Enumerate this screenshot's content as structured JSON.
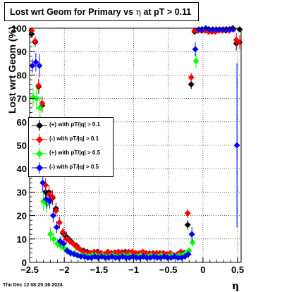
{
  "title": {
    "prefix": "Lost wrt Geom for Primary vs ",
    "symbol": "η",
    "suffix": " at pT > 0.11"
  },
  "timestamp": "Thu Dec 12 08:25:36 2024",
  "chart_data": {
    "type": "scatter",
    "title": "Lost wrt Geom for Primary vs η at pT > 0.11",
    "xlabel": "η",
    "ylabel": "Lost wrt Geom (%)",
    "xlim": [
      -2.5,
      0.55
    ],
    "ylim": [
      0,
      100
    ],
    "x_ticks": [
      -2.5,
      -2,
      -1.5,
      -1,
      -0.5,
      0,
      0.5
    ],
    "x_tick_labels": [
      "−2.5",
      "−2",
      "−1.5",
      "−1",
      "−0.5",
      "0",
      "0.5"
    ],
    "y_ticks": [
      0,
      10,
      20,
      30,
      40,
      50,
      60,
      70,
      80,
      90,
      100
    ],
    "y_tick_labels": [
      "0",
      "10",
      "20",
      "30",
      "40",
      "50",
      "60",
      "70",
      "80",
      "90",
      "100"
    ],
    "grid": true,
    "legend_position": "middle-left",
    "series": [
      {
        "name": "(+) with pT/|q| > 0.1",
        "color": "#000000",
        "x": [
          -2.47,
          -2.42,
          -2.37,
          -2.32,
          -2.27,
          -2.22,
          -2.17,
          -2.12,
          -2.07,
          -2.02,
          -1.97,
          -1.92,
          -1.87,
          -1.82,
          -1.77,
          -1.72,
          -1.67,
          -1.62,
          -1.57,
          -1.52,
          -1.47,
          -1.42,
          -1.37,
          -1.32,
          -1.27,
          -1.22,
          -1.17,
          -1.12,
          -1.07,
          -1.02,
          -0.97,
          -0.92,
          -0.87,
          -0.82,
          -0.77,
          -0.72,
          -0.67,
          -0.62,
          -0.57,
          -0.52,
          -0.47,
          -0.42,
          -0.37,
          -0.32,
          -0.27,
          -0.22,
          -0.17,
          -0.12,
          -0.07,
          -0.02,
          0.03,
          0.08,
          0.13,
          0.18,
          0.23,
          0.28,
          0.33,
          0.38,
          0.43,
          0.48,
          0.53
        ],
        "y": [
          97.5,
          94,
          75,
          67,
          30,
          30,
          27.5,
          23,
          17,
          12.5,
          11,
          9.5,
          8,
          7,
          5.5,
          5,
          4.5,
          4,
          3.8,
          4.5,
          4,
          3.5,
          4,
          3.8,
          4.2,
          3.6,
          4.3,
          4.5,
          3.8,
          4,
          3.5,
          3.8,
          4.2,
          3.5,
          3.8,
          3,
          3.5,
          4,
          3.8,
          3.5,
          3.5,
          3,
          2.5,
          3.5,
          4,
          16,
          76,
          98.5,
          99,
          99,
          99,
          99.5,
          99,
          99,
          99,
          99,
          99,
          99.5,
          100,
          93.5,
          99.5
        ],
        "y_err": [
          1,
          2,
          3,
          3,
          3,
          3,
          3,
          2.5,
          2.5,
          2,
          2,
          1.5,
          1.5,
          1.5,
          1,
          1,
          1,
          1,
          1,
          1,
          1,
          1,
          1,
          1,
          1,
          1,
          1,
          1,
          1,
          1,
          1,
          1,
          1,
          1,
          1,
          1,
          1,
          1,
          1,
          1,
          1,
          1,
          1,
          1,
          1,
          2,
          2,
          1,
          0.5,
          0.5,
          0.5,
          0.5,
          0.5,
          0.5,
          0.5,
          0.5,
          0.5,
          0.5,
          0.5,
          3,
          1
        ]
      },
      {
        "name": "(-) with pT/|q| > 0.1",
        "color": "#ff0000",
        "x": [
          -2.47,
          -2.42,
          -2.37,
          -2.32,
          -2.27,
          -2.22,
          -2.17,
          -2.12,
          -2.07,
          -2.02,
          -1.97,
          -1.92,
          -1.87,
          -1.82,
          -1.77,
          -1.72,
          -1.67,
          -1.62,
          -1.57,
          -1.52,
          -1.47,
          -1.42,
          -1.37,
          -1.32,
          -1.27,
          -1.22,
          -1.17,
          -1.12,
          -1.07,
          -1.02,
          -0.97,
          -0.92,
          -0.87,
          -0.82,
          -0.77,
          -0.72,
          -0.67,
          -0.62,
          -0.57,
          -0.52,
          -0.47,
          -0.42,
          -0.37,
          -0.32,
          -0.27,
          -0.22,
          -0.17,
          -0.12,
          -0.07,
          -0.02,
          0.03,
          0.08,
          0.13,
          0.18,
          0.23,
          0.28,
          0.33,
          0.38,
          0.43,
          0.48,
          0.53
        ],
        "y": [
          99,
          94.5,
          75.5,
          68,
          33,
          29,
          28,
          22,
          17,
          13,
          10,
          9,
          8,
          6.5,
          5.5,
          4.5,
          4,
          4,
          4.5,
          4,
          4,
          3.5,
          4.5,
          4,
          4,
          4.5,
          4,
          4,
          4.5,
          4.5,
          4,
          4,
          4.5,
          4,
          3.5,
          4,
          4,
          4,
          4,
          3.5,
          4,
          3,
          3.5,
          4.5,
          3.5,
          21,
          79,
          99,
          99,
          99.5,
          99,
          98.5,
          98.5,
          98.5,
          99,
          99,
          99.5,
          99,
          99.5,
          95,
          94
        ],
        "y_err": [
          1,
          2,
          3,
          3,
          3,
          3,
          3,
          2.5,
          2.5,
          2,
          2,
          1.5,
          1.5,
          1.5,
          1,
          1,
          1,
          1,
          1,
          1,
          1,
          1,
          1,
          1,
          1,
          1,
          1,
          1,
          1,
          1,
          1,
          1,
          1,
          1,
          1,
          1,
          1,
          1,
          1,
          1,
          1,
          1,
          1,
          1,
          1,
          2,
          2,
          1,
          0.5,
          0.5,
          0.5,
          0.5,
          0.5,
          0.5,
          0.5,
          0.5,
          0.5,
          0.5,
          0.5,
          3,
          3
        ]
      },
      {
        "name": "(+) with pT/|q| > 0.5",
        "color": "#00ff00",
        "x": [
          -2.45,
          -2.4,
          -2.35,
          -2.3,
          -2.25,
          -2.2,
          -2.15,
          -2.1,
          -2.05,
          -2.0,
          -1.95,
          -1.9,
          -1.85,
          -1.8,
          -1.75,
          -1.7,
          -1.65,
          -1.6,
          -1.55,
          -1.5,
          -1.45,
          -1.4,
          -1.35,
          -1.3,
          -1.25,
          -1.2,
          -1.15,
          -1.1,
          -1.05,
          -1.0,
          -0.95,
          -0.9,
          -0.85,
          -0.8,
          -0.75,
          -0.7,
          -0.65,
          -0.6,
          -0.55,
          -0.5,
          -0.45,
          -0.4,
          -0.35,
          -0.3,
          -0.25,
          -0.2,
          -0.15,
          -0.1
        ],
        "y": [
          70.5,
          70,
          66,
          26,
          25,
          12,
          10,
          8,
          7,
          6,
          5,
          4,
          4,
          3,
          3,
          3,
          2.5,
          3,
          3,
          2.5,
          3,
          2.5,
          2.5,
          3,
          2.5,
          2.5,
          3,
          2.5,
          3,
          2.5,
          2.5,
          3,
          2.5,
          2.5,
          3,
          2.5,
          2.5,
          3,
          2.5,
          2.5,
          3,
          2.5,
          3,
          3,
          4,
          5,
          8.5,
          86
        ],
        "y_err": [
          4,
          5,
          5,
          4,
          4,
          3,
          2.5,
          2,
          2,
          2,
          1.5,
          1.5,
          1,
          1,
          1,
          1,
          1,
          1,
          1,
          1,
          1,
          1,
          1,
          1,
          1,
          1,
          1,
          1,
          1,
          1,
          1,
          1,
          1,
          1,
          1,
          1,
          1,
          1,
          1,
          1,
          1,
          1,
          1,
          1,
          1,
          1.5,
          2,
          3
        ]
      },
      {
        "name": "(-) with pT/|q| > 0.5",
        "color": "#0000ff",
        "x": [
          -2.46,
          -2.41,
          -2.36,
          -2.31,
          -2.26,
          -2.21,
          -2.16,
          -2.11,
          -2.06,
          -2.01,
          -1.96,
          -1.91,
          -1.86,
          -1.81,
          -1.76,
          -1.71,
          -1.66,
          -1.61,
          -1.56,
          -1.51,
          -1.46,
          -1.41,
          -1.36,
          -1.31,
          -1.26,
          -1.21,
          -1.16,
          -1.11,
          -1.06,
          -1.01,
          -0.96,
          -0.91,
          -0.86,
          -0.81,
          -0.76,
          -0.71,
          -0.66,
          -0.61,
          -0.56,
          -0.51,
          -0.46,
          -0.41,
          -0.36,
          -0.31,
          -0.26,
          -0.21,
          -0.16,
          -0.11,
          -0.06,
          -0.01,
          0.04,
          0.09,
          0.14,
          0.19,
          0.24,
          0.29,
          0.34,
          0.39,
          0.44,
          0.49
        ],
        "y": [
          84,
          85.5,
          84,
          34,
          27,
          26,
          20,
          15,
          9,
          8,
          5,
          4,
          3.5,
          3,
          2.5,
          2.5,
          2,
          2,
          2.5,
          2,
          2.5,
          2,
          2,
          2.5,
          2,
          2,
          2.5,
          2,
          2,
          2.5,
          2,
          2,
          2.5,
          2,
          2,
          2.5,
          2,
          2,
          2.5,
          2,
          2,
          2.5,
          2,
          2,
          2.5,
          3.5,
          12,
          91,
          99.5,
          99.5,
          100,
          99.5,
          99.5,
          99.5,
          99.5,
          99.5,
          99.5,
          99.5,
          99.5,
          50
        ],
        "y_err": [
          3,
          4,
          5,
          4,
          4,
          3,
          3,
          2.5,
          2,
          2,
          1.5,
          1.5,
          1,
          1,
          1,
          1,
          1,
          1,
          1,
          1,
          1,
          1,
          1,
          1,
          1,
          1,
          1,
          1,
          1,
          1,
          1,
          1,
          1,
          1,
          1,
          1,
          1,
          1,
          1,
          1,
          1,
          1,
          1,
          1,
          1,
          1.5,
          3,
          3,
          0.5,
          0.5,
          0.5,
          0.5,
          0.5,
          0.5,
          0.5,
          0.5,
          0.5,
          0.5,
          0.5,
          35
        ]
      }
    ]
  }
}
